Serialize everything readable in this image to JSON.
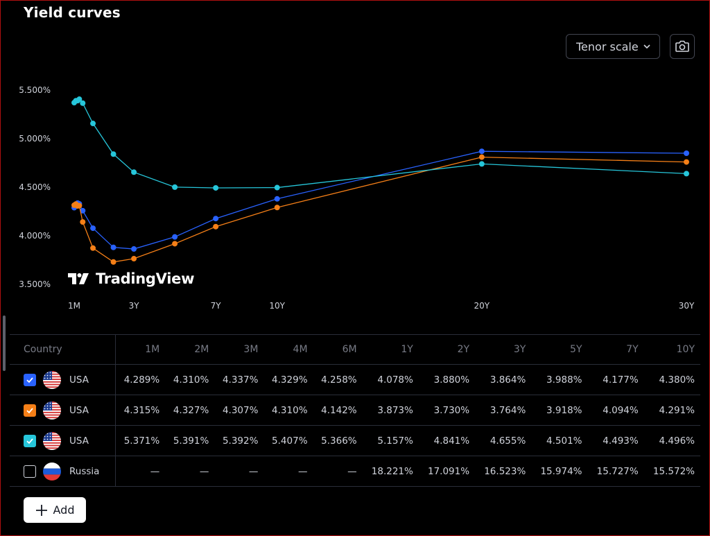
{
  "page": {
    "title": "Yield curves"
  },
  "toolbar": {
    "tenor_scale_label": "Tenor scale",
    "camera_icon": "camera-icon",
    "chevron_icon": "chevron-down-icon"
  },
  "watermark": {
    "text": "TradingView"
  },
  "chart_data": {
    "type": "line",
    "x_ticks": [
      "1M",
      "3Y",
      "7Y",
      "10Y",
      "20Y",
      "30Y"
    ],
    "y_ticks": [
      "5.500%",
      "5.000%",
      "4.500%",
      "4.000%",
      "3.500%"
    ],
    "ylim": [
      3.5,
      5.5
    ],
    "grid": false,
    "series": [
      {
        "color": "#2962ff",
        "points": [
          [
            "1M",
            4.289
          ],
          [
            "2M",
            4.31
          ],
          [
            "3M",
            4.337
          ],
          [
            "4M",
            4.329
          ],
          [
            "6M",
            4.258
          ],
          [
            "1Y",
            4.078
          ],
          [
            "2Y",
            3.88
          ],
          [
            "3Y",
            3.864
          ],
          [
            "5Y",
            3.988
          ],
          [
            "7Y",
            4.177
          ],
          [
            "10Y",
            4.38
          ],
          [
            "20Y",
            4.87
          ],
          [
            "30Y",
            4.85
          ]
        ]
      },
      {
        "color": "#f57f17",
        "points": [
          [
            "1M",
            4.315
          ],
          [
            "2M",
            4.327
          ],
          [
            "3M",
            4.307
          ],
          [
            "4M",
            4.31
          ],
          [
            "6M",
            4.142
          ],
          [
            "1Y",
            3.873
          ],
          [
            "2Y",
            3.73
          ],
          [
            "3Y",
            3.764
          ],
          [
            "5Y",
            3.918
          ],
          [
            "7Y",
            4.094
          ],
          [
            "10Y",
            4.291
          ],
          [
            "20Y",
            4.81
          ],
          [
            "30Y",
            4.76
          ]
        ]
      },
      {
        "color": "#26c6da",
        "points": [
          [
            "1M",
            5.371
          ],
          [
            "2M",
            5.391
          ],
          [
            "3M",
            5.392
          ],
          [
            "4M",
            5.407
          ],
          [
            "6M",
            5.366
          ],
          [
            "1Y",
            5.157
          ],
          [
            "2Y",
            4.841
          ],
          [
            "3Y",
            4.655
          ],
          [
            "5Y",
            4.501
          ],
          [
            "7Y",
            4.493
          ],
          [
            "10Y",
            4.496
          ],
          [
            "20Y",
            4.74
          ],
          [
            "30Y",
            4.64
          ]
        ]
      }
    ]
  },
  "table": {
    "country_header": "Country",
    "columns": [
      "1M",
      "2M",
      "3M",
      "4M",
      "6M",
      "1Y",
      "2Y",
      "3Y",
      "5Y",
      "7Y",
      "10Y"
    ],
    "rows": [
      {
        "country": "USA",
        "checked": true,
        "check_color": "#2962ff",
        "flag": "usa-flag-icon",
        "values": [
          "4.289%",
          "4.310%",
          "4.337%",
          "4.329%",
          "4.258%",
          "4.078%",
          "3.880%",
          "3.864%",
          "3.988%",
          "4.177%",
          "4.380%"
        ]
      },
      {
        "country": "USA",
        "checked": true,
        "check_color": "#f57f17",
        "flag": "usa-flag-icon",
        "values": [
          "4.315%",
          "4.327%",
          "4.307%",
          "4.310%",
          "4.142%",
          "3.873%",
          "3.730%",
          "3.764%",
          "3.918%",
          "4.094%",
          "4.291%"
        ]
      },
      {
        "country": "USA",
        "checked": true,
        "check_color": "#26c6da",
        "flag": "usa-flag-icon",
        "values": [
          "5.371%",
          "5.391%",
          "5.392%",
          "5.407%",
          "5.366%",
          "5.157%",
          "4.841%",
          "4.655%",
          "4.501%",
          "4.493%",
          "4.496%"
        ]
      },
      {
        "country": "Russia",
        "checked": false,
        "check_color": "",
        "flag": "russia-flag-icon",
        "values": [
          "—",
          "—",
          "—",
          "—",
          "—",
          "18.221%",
          "17.091%",
          "16.523%",
          "15.974%",
          "15.727%",
          "15.572%"
        ]
      }
    ]
  },
  "add_button": {
    "label": "Add"
  }
}
